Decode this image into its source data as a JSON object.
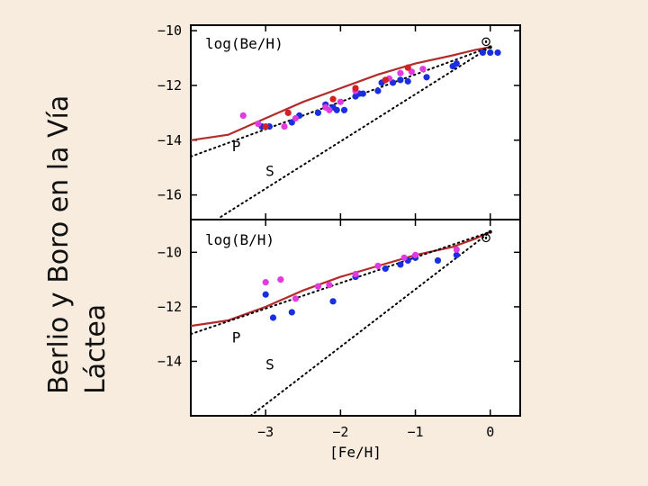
{
  "slide": {
    "title_line1": "Berlio y Boro en la Vía",
    "title_line2": "Láctea"
  },
  "colors": {
    "background": "#f8ecdf",
    "model_curve": "#b52a2a",
    "blue_points": "#1a2fe0",
    "magenta_points": "#e03ae0",
    "red_points": "#d42020"
  },
  "chart_data": [
    {
      "type": "scatter",
      "panel": "top",
      "title": "log(Be/H)",
      "xlabel": "[Fe/H]",
      "xlim": [
        -4,
        0.4
      ],
      "ylim": [
        -16.9,
        -9.8
      ],
      "yticks": [
        -10,
        -12,
        -14,
        -16
      ],
      "ytick_labels": [
        "−10",
        "−12",
        "−14",
        "−16"
      ],
      "solar_symbol": "⊙",
      "solar_point": [
        0,
        -10.6
      ],
      "curve_labels": [
        {
          "text": "P",
          "at": [
            -3.45,
            -14.4
          ]
        },
        {
          "text": "S",
          "at": [
            -3.0,
            -15.3
          ]
        }
      ],
      "series": [
        {
          "name": "model",
          "style": "solid",
          "color": "#b52a2a",
          "x": [
            -4,
            -3.5,
            -3,
            -2.5,
            -2,
            -1.5,
            -1,
            -0.5,
            -0.2,
            0
          ],
          "y": [
            -14.0,
            -13.8,
            -13.2,
            -12.6,
            -12.1,
            -11.6,
            -11.2,
            -10.9,
            -10.7,
            -10.6
          ]
        },
        {
          "name": "P",
          "style": "dotted",
          "color": "#000000",
          "x": [
            -4,
            0
          ],
          "y": [
            -14.6,
            -10.6
          ]
        },
        {
          "name": "S",
          "style": "dotted",
          "color": "#000000",
          "x": [
            -3.6,
            0
          ],
          "y": [
            -16.8,
            -10.6
          ]
        },
        {
          "name": "blue",
          "style": "points",
          "color": "#1a2fe0",
          "x": [
            -3.05,
            -2.95,
            -2.65,
            -2.55,
            -2.3,
            -2.2,
            -2.1,
            -2.05,
            -1.95,
            -1.8,
            -1.75,
            -1.7,
            -1.5,
            -1.45,
            -1.3,
            -1.2,
            -1.1,
            -0.85,
            -0.5,
            -0.45,
            -0.1,
            0.0,
            0.1
          ],
          "y": [
            -13.5,
            -13.5,
            -13.35,
            -13.1,
            -13.0,
            -12.7,
            -12.8,
            -12.9,
            -12.9,
            -12.4,
            -12.3,
            -12.3,
            -12.2,
            -11.9,
            -11.9,
            -11.8,
            -11.85,
            -11.7,
            -11.3,
            -11.2,
            -10.8,
            -10.8,
            -10.8
          ]
        },
        {
          "name": "magenta",
          "style": "points",
          "color": "#e03ae0",
          "x": [
            -3.3,
            -3.1,
            -2.75,
            -2.6,
            -2.2,
            -2.15,
            -2.0,
            -1.8,
            -1.35,
            -1.2,
            -1.05,
            -0.9
          ],
          "y": [
            -13.1,
            -13.4,
            -13.5,
            -13.2,
            -12.8,
            -12.9,
            -12.6,
            -12.2,
            -11.75,
            -11.55,
            -11.5,
            -11.4
          ]
        },
        {
          "name": "red",
          "style": "points",
          "color": "#d42020",
          "x": [
            -3.0,
            -2.7,
            -2.1,
            -1.8,
            -1.4,
            -1.1
          ],
          "y": [
            -13.5,
            -13.0,
            -12.5,
            -12.1,
            -11.8,
            -11.35
          ]
        }
      ]
    },
    {
      "type": "scatter",
      "panel": "bottom",
      "title": "log(B/H)",
      "xlabel": "[Fe/H]",
      "xlim": [
        -4,
        0.4
      ],
      "ylim": [
        -16,
        -8.8
      ],
      "yticks": [
        -10,
        -12,
        -14
      ],
      "ytick_labels": [
        "−10",
        "−12",
        "−14"
      ],
      "xticks": [
        -3,
        -2,
        -1,
        0
      ],
      "xtick_labels": [
        "−3",
        "−2",
        "−1",
        "0"
      ],
      "solar_symbol": "⊙",
      "solar_point": [
        0,
        -9.25
      ],
      "curve_labels": [
        {
          "text": "P",
          "at": [
            -3.45,
            -13.3
          ]
        },
        {
          "text": "S",
          "at": [
            -3.0,
            -14.3
          ]
        }
      ],
      "series": [
        {
          "name": "model",
          "style": "solid",
          "color": "#b52a2a",
          "x": [
            -4,
            -3.5,
            -3,
            -2.5,
            -2,
            -1.5,
            -1,
            -0.5,
            -0.2,
            0
          ],
          "y": [
            -12.7,
            -12.5,
            -12.0,
            -11.4,
            -10.9,
            -10.5,
            -10.1,
            -9.8,
            -9.5,
            -9.25
          ]
        },
        {
          "name": "P",
          "style": "dotted",
          "color": "#000000",
          "x": [
            -4,
            0
          ],
          "y": [
            -13.0,
            -9.25
          ]
        },
        {
          "name": "S",
          "style": "dotted",
          "color": "#000000",
          "x": [
            -3.2,
            0
          ],
          "y": [
            -16.0,
            -9.25
          ]
        },
        {
          "name": "blue",
          "style": "points",
          "color": "#1a2fe0",
          "x": [
            -3.0,
            -2.9,
            -2.65,
            -2.1,
            -1.8,
            -1.4,
            -1.2,
            -1.1,
            -1.0,
            -0.7,
            -0.45
          ],
          "y": [
            -11.55,
            -12.4,
            -12.2,
            -11.8,
            -10.9,
            -10.6,
            -10.45,
            -10.3,
            -10.2,
            -10.3,
            -10.1
          ]
        },
        {
          "name": "magenta",
          "style": "points",
          "color": "#e03ae0",
          "x": [
            -3.0,
            -2.8,
            -2.6,
            -2.3,
            -2.15,
            -1.8,
            -1.5,
            -1.15,
            -1.0,
            -0.45
          ],
          "y": [
            -11.1,
            -11.0,
            -11.7,
            -11.25,
            -11.2,
            -10.8,
            -10.5,
            -10.2,
            -10.1,
            -9.9
          ]
        }
      ]
    }
  ]
}
